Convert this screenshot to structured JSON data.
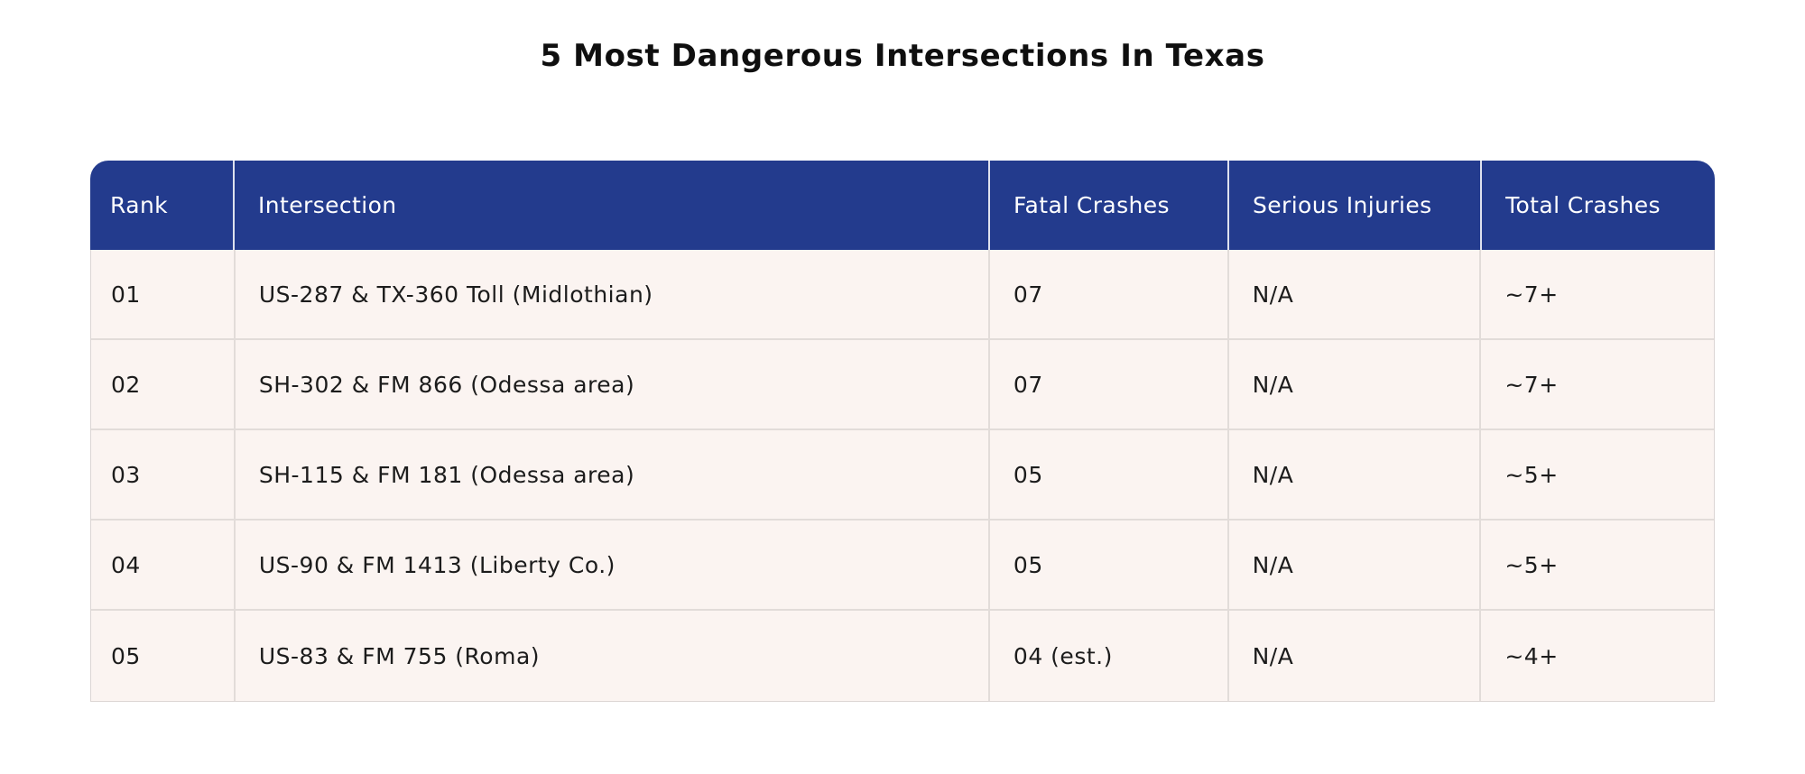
{
  "title": "5 Most Dangerous Intersections In Texas",
  "colors": {
    "header_bg": "#233b8d",
    "header_text": "#ffffff",
    "row_bg": "#fbf4f1",
    "row_divider": "#e2dcd9",
    "grid_line": "#dcd6d4",
    "body_text": "#1c1c1c",
    "title_text": "#0f0f0f"
  },
  "table": {
    "columns": [
      "Rank",
      "Intersection",
      "Fatal Crashes",
      "Serious Injuries",
      "Total Crashes"
    ],
    "rows": [
      {
        "rank": "01",
        "intersection": "US-287 & TX-360 Toll (Midlothian)",
        "fatal": "07",
        "injuries": "N/A",
        "total": "~7+"
      },
      {
        "rank": "02",
        "intersection": "SH-302 & FM 866 (Odessa area)",
        "fatal": "07",
        "injuries": "N/A",
        "total": "~7+"
      },
      {
        "rank": "03",
        "intersection": "SH-115 & FM 181 (Odessa area)",
        "fatal": "05",
        "injuries": "N/A",
        "total": "~5+"
      },
      {
        "rank": "04",
        "intersection": "US-90 & FM 1413 (Liberty Co.)",
        "fatal": "05",
        "injuries": "N/A",
        "total": "~5+"
      },
      {
        "rank": "05",
        "intersection": "US-83 & FM 755 (Roma)",
        "fatal": "04 (est.)",
        "injuries": "N/A",
        "total": "~4+"
      }
    ]
  },
  "chart_data": {
    "type": "table",
    "title": "5 Most Dangerous Intersections In Texas",
    "columns": [
      "Rank",
      "Intersection",
      "Fatal Crashes",
      "Serious Injuries",
      "Total Crashes"
    ],
    "rows": [
      [
        "01",
        "US-287 & TX-360 Toll (Midlothian)",
        "07",
        "N/A",
        "~7+"
      ],
      [
        "02",
        "SH-302 & FM 866 (Odessa area)",
        "07",
        "N/A",
        "~7+"
      ],
      [
        "03",
        "SH-115 & FM 181 (Odessa area)",
        "05",
        "N/A",
        "~5+"
      ],
      [
        "04",
        "US-90 & FM 1413 (Liberty Co.)",
        "05",
        "N/A",
        "~5+"
      ],
      [
        "05",
        "US-83 & FM 755 (Roma)",
        "04 (est.)",
        "N/A",
        "~4+"
      ]
    ]
  }
}
